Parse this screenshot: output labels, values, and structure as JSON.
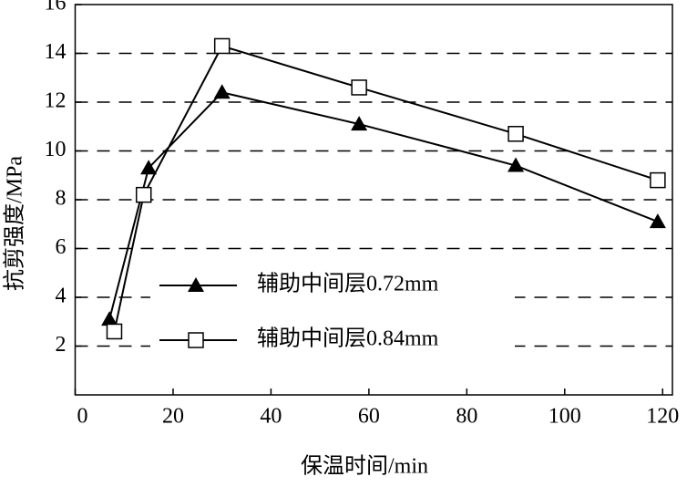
{
  "chart_data": {
    "type": "line",
    "x_label": "保温时间/min",
    "y_label": "抗剪强度/MPa",
    "xlim": [
      0,
      122
    ],
    "xticks": [
      0,
      20,
      40,
      60,
      80,
      100,
      120
    ],
    "ylim": [
      0,
      16
    ],
    "yticks": [
      2,
      4,
      6,
      8,
      10,
      12,
      14,
      16
    ],
    "grid": true,
    "series": [
      {
        "name": "辅助中间层0.72mm",
        "color": "#000000",
        "marker": "triangle",
        "x": [
          7,
          15,
          30,
          58,
          90,
          119
        ],
        "values": [
          3.1,
          9.3,
          12.4,
          11.1,
          9.4,
          7.1
        ]
      },
      {
        "name": "辅助中间层0.84mm",
        "color": "#000000",
        "marker": "square",
        "x": [
          8,
          14,
          30,
          58,
          90,
          119
        ],
        "values": [
          2.6,
          8.2,
          14.3,
          12.6,
          10.7,
          8.8
        ]
      }
    ]
  }
}
